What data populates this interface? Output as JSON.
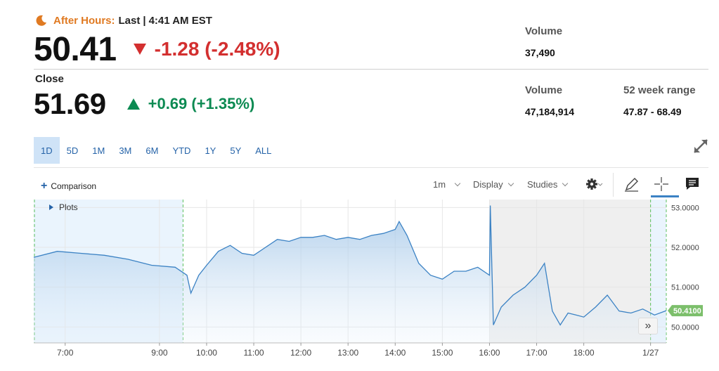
{
  "quote": {
    "after_hours_label": "After Hours:",
    "after_hours_last": "Last",
    "after_hours_sep": "|",
    "after_hours_time": "4:41 AM EST",
    "after_price": "50.41",
    "after_change": "-1.28 (-2.48%)",
    "close_label": "Close",
    "close_price": "51.69",
    "close_change": "+0.69 (+1.35%)"
  },
  "stats": {
    "ah_volume_label": "Volume",
    "ah_volume_value": "37,490",
    "volume_label": "Volume",
    "volume_value": "47,184,914",
    "range_label": "52 week range",
    "range_value": "47.87 - 68.49"
  },
  "ranges": [
    "1D",
    "5D",
    "1M",
    "3M",
    "6M",
    "YTD",
    "1Y",
    "5Y",
    "ALL"
  ],
  "active_range": "1D",
  "toolbar": {
    "comparison": "Comparison",
    "interval": "1m",
    "display": "Display",
    "studies": "Studies"
  },
  "chart": {
    "plots_label": "Plots",
    "current_price_label": "50.4100",
    "accent": "#3b82c4",
    "current_label_color": "#7cbf6b"
  },
  "chart_data": {
    "type": "area",
    "title": "",
    "xlabel": "",
    "ylabel": "",
    "ylim": [
      49.6,
      53.2
    ],
    "x_ticks": [
      "7:00",
      "9:00",
      "10:00",
      "11:00",
      "12:00",
      "13:00",
      "14:00",
      "15:00",
      "16:00",
      "17:00",
      "18:00",
      "1/27"
    ],
    "y_ticks": [
      "53.0000",
      "52.0000",
      "51.0000",
      "50.0000"
    ],
    "series": [
      {
        "x": [
          "6:20",
          "6:50",
          "7:20",
          "7:50",
          "8:20",
          "8:50",
          "9:20",
          "9:35",
          "9:40",
          "9:50",
          "10:00",
          "10:15",
          "10:30",
          "10:45",
          "11:00",
          "11:15",
          "11:30",
          "11:45",
          "12:00",
          "12:15",
          "12:30",
          "12:45",
          "13:00",
          "13:15",
          "13:30",
          "13:45",
          "14:00",
          "14:05",
          "14:15",
          "14:30",
          "14:45",
          "15:00",
          "15:15",
          "15:30",
          "15:45",
          "16:00",
          "16:01",
          "16:05",
          "16:15",
          "16:30",
          "16:45",
          "17:00",
          "17:10",
          "17:20",
          "17:30",
          "17:40",
          "17:50",
          "18:00",
          "18:15",
          "18:30",
          "18:45",
          "19:00",
          "19:15",
          "19:30",
          "19:45"
        ],
        "values": [
          51.75,
          51.9,
          51.85,
          51.8,
          51.7,
          51.55,
          51.5,
          51.3,
          50.85,
          51.3,
          51.55,
          51.9,
          52.05,
          51.85,
          51.8,
          52.0,
          52.2,
          52.15,
          52.25,
          52.25,
          52.3,
          52.2,
          52.25,
          52.2,
          52.3,
          52.35,
          52.45,
          52.65,
          52.3,
          51.6,
          51.3,
          51.2,
          51.4,
          51.4,
          51.5,
          51.3,
          53.05,
          50.05,
          50.5,
          50.8,
          51.0,
          51.3,
          51.6,
          50.4,
          50.05,
          50.35,
          50.3,
          50.25,
          50.5,
          50.8,
          50.4,
          50.35,
          50.45,
          50.3,
          50.41
        ]
      }
    ]
  }
}
